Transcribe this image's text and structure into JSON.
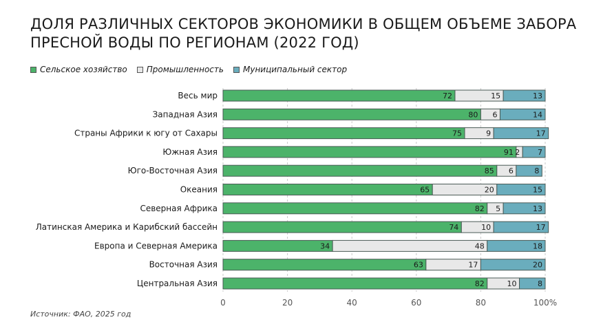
{
  "chart_data": {
    "type": "bar",
    "orientation": "horizontal",
    "stacked": true,
    "title": "Доля различных секторов экономики в общем объеме забора пресной воды по регионам (2022 год)",
    "categories": [
      "Весь мир",
      "Западная Азия",
      "Страны Африки к югу от Сахары",
      "Южная Азия",
      "Юго-Восточная Азия",
      "Океания",
      "Северная Африка",
      "Латинская Америка и Карибский бассейн",
      "Европа и Северная Америка",
      "Восточная Азия",
      "Центральная Азия"
    ],
    "series": [
      {
        "name": "Сельское хозяйство",
        "color": "#4cb36a",
        "values": [
          72,
          80,
          75,
          91,
          85,
          65,
          82,
          74,
          34,
          63,
          82
        ]
      },
      {
        "name": "Промышленность",
        "color": "#e8e8e8",
        "values": [
          15,
          6,
          9,
          2,
          6,
          20,
          5,
          10,
          48,
          17,
          10
        ]
      },
      {
        "name": "Муниципальный сектор",
        "color": "#6aadbd",
        "values": [
          13,
          14,
          17,
          7,
          8,
          15,
          13,
          17,
          18,
          20,
          8
        ]
      }
    ],
    "xlim": [
      0,
      100
    ],
    "xticks": [
      "0",
      "20",
      "40",
      "60",
      "80",
      "100%"
    ],
    "xtick_values": [
      0,
      20,
      40,
      60,
      80,
      100
    ],
    "legend": "top-left",
    "grid": "vertical dashed"
  },
  "source": "Источник: ФАО, 2025 год"
}
